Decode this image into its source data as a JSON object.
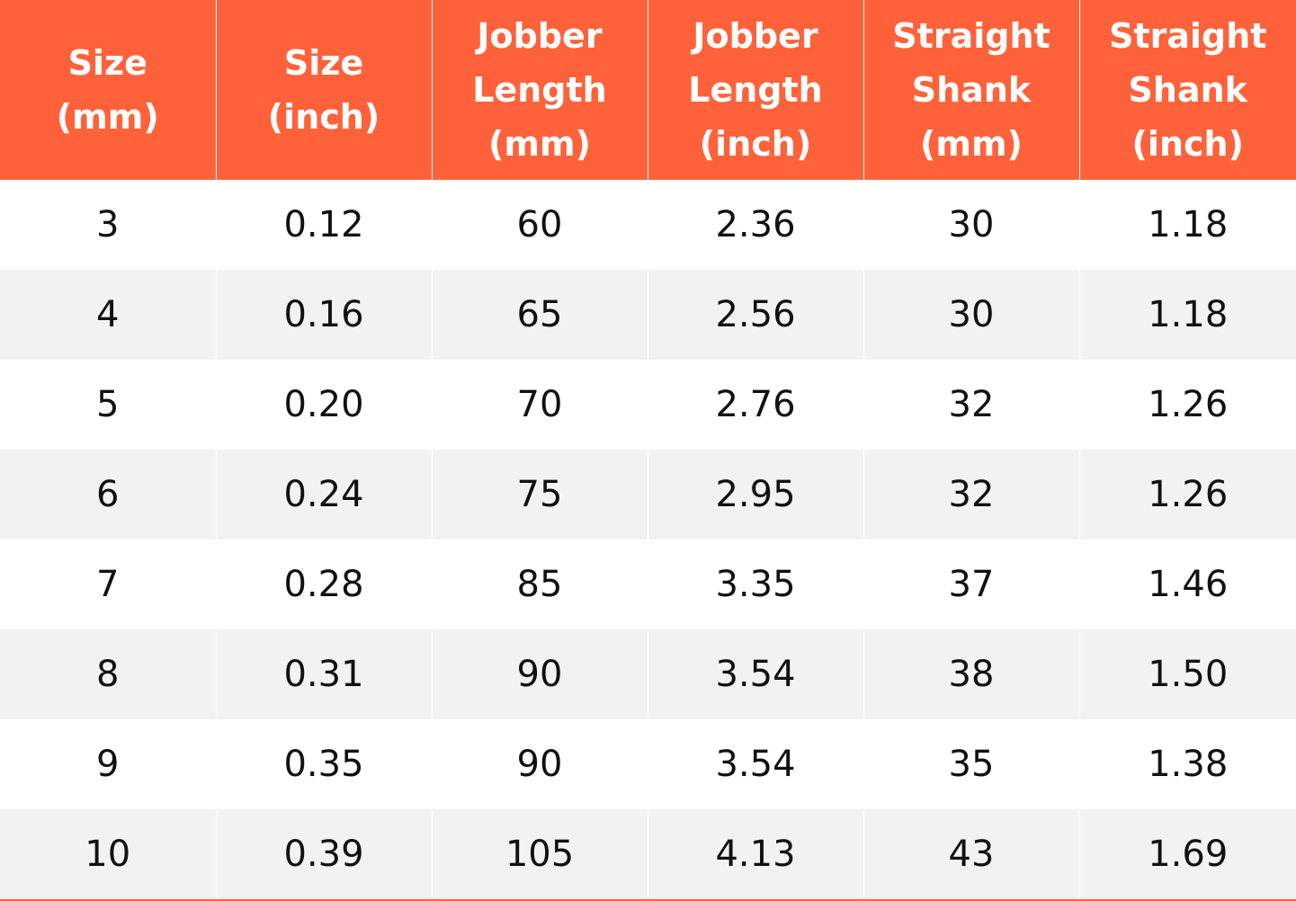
{
  "table": {
    "headers": [
      [
        "Size",
        "(mm)"
      ],
      [
        "Size",
        "(inch)"
      ],
      [
        "Jobber",
        "Length",
        "(mm)"
      ],
      [
        "Jobber",
        "Length",
        "(inch)"
      ],
      [
        "Straight",
        "Shank",
        "(mm)"
      ],
      [
        "Straight",
        "Shank",
        "(inch)"
      ]
    ],
    "rows": [
      [
        "3",
        "0.12",
        "60",
        "2.36",
        "30",
        "1.18"
      ],
      [
        "4",
        "0.16",
        "65",
        "2.56",
        "30",
        "1.18"
      ],
      [
        "5",
        "0.20",
        "70",
        "2.76",
        "32",
        "1.26"
      ],
      [
        "6",
        "0.24",
        "75",
        "2.95",
        "32",
        "1.26"
      ],
      [
        "7",
        "0.28",
        "85",
        "3.35",
        "37",
        "1.46"
      ],
      [
        "8",
        "0.31",
        "90",
        "3.54",
        "38",
        "1.50"
      ],
      [
        "9",
        "0.35",
        "90",
        "3.54",
        "35",
        "1.38"
      ],
      [
        "10",
        "0.39",
        "105",
        "4.13",
        "43",
        "1.69"
      ]
    ]
  }
}
